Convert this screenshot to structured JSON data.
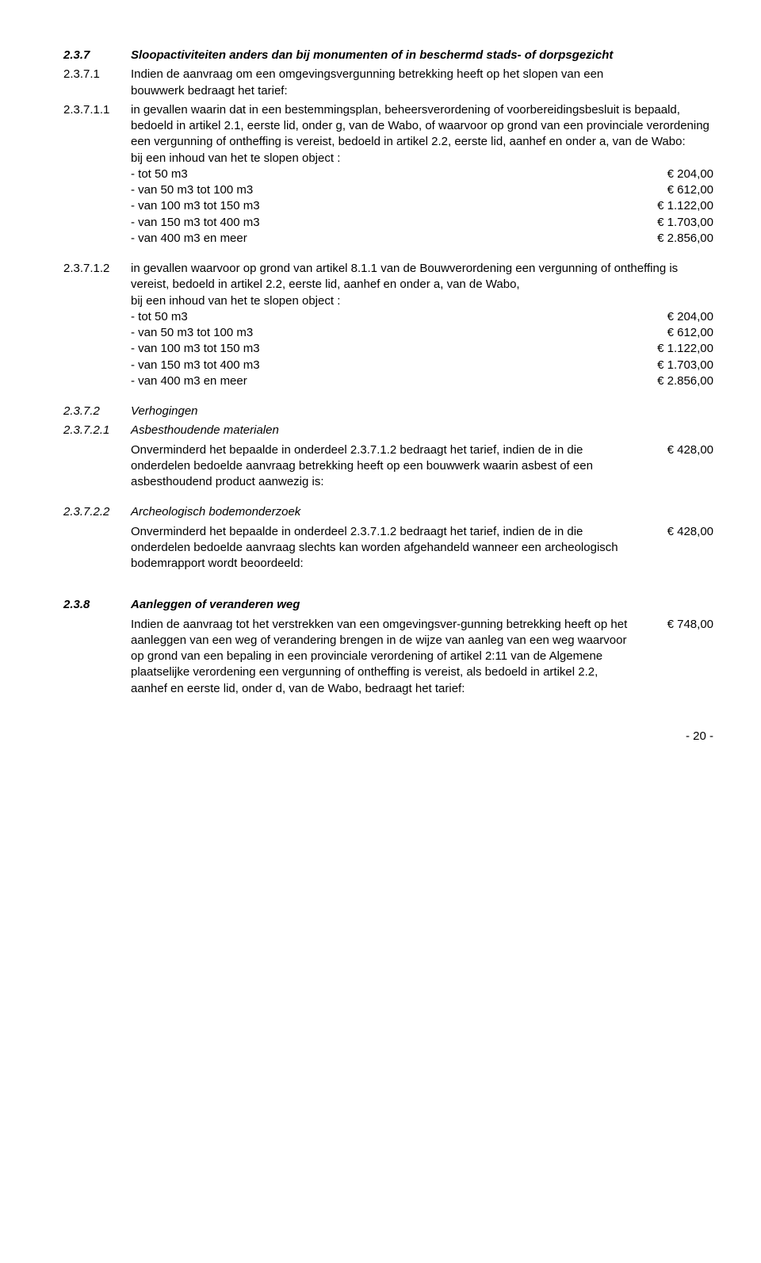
{
  "s237": {
    "num": "2.3.7",
    "title": "Sloopactiviteiten anders dan bij monumenten of in beschermd stads- of dorpsgezicht"
  },
  "s2371": {
    "num": "2.3.7.1",
    "text": "Indien de aanvraag om een omgevingsvergunning betrekking heeft op het slopen van een bouwwerk bedraagt het tarief:"
  },
  "s23711": {
    "num": "2.3.7.1.1",
    "text": "in gevallen waarin dat in een bestemmingsplan, beheersverordening of voorbereidingsbesluit is bepaald, bedoeld in artikel 2.1, eerste lid, onder g, van de Wabo, of waarvoor op grond van een provinciale verordening een vergunning of ontheffing is vereist, bedoeld in artikel 2.2, eerste lid, aanhef en onder a, van de Wabo:",
    "intro": "bij een inhoud van het te slopen object :",
    "rows": [
      {
        "label": "- tot 50 m3",
        "amount": "€     204,00"
      },
      {
        "label": "- van 50 m3 tot 100 m3",
        "amount": "€     612,00"
      },
      {
        "label": "- van 100 m3 tot 150 m3",
        "amount": "€  1.122,00"
      },
      {
        "label": "- van 150 m3 tot 400 m3",
        "amount": "€  1.703,00"
      },
      {
        "label": "- van 400 m3 en meer",
        "amount": "€  2.856,00"
      }
    ]
  },
  "s23712": {
    "num": "2.3.7.1.2",
    "text": "in gevallen waarvoor op grond van artikel 8.1.1 van de Bouwverordening een vergunning of ontheffing is vereist, bedoeld in artikel 2.2, eerste lid, aanhef en onder a, van de Wabo,",
    "intro": "bij een inhoud van het te slopen object :",
    "rows": [
      {
        "label": "- tot 50 m3",
        "amount": "€     204,00"
      },
      {
        "label": "- van 50 m3 tot 100 m3",
        "amount": "€     612,00"
      },
      {
        "label": "- van 100 m3 tot 150 m3",
        "amount": "€  1.122,00"
      },
      {
        "label": "- van 150 m3 tot 400 m3",
        "amount": "€  1.703,00"
      },
      {
        "label": "- van 400 m3 en meer",
        "amount": "€  2.856,00"
      }
    ]
  },
  "s2372": {
    "num": "2.3.7.2",
    "title": "Verhogingen"
  },
  "s23721": {
    "num": "2.3.7.2.1",
    "title": "Asbesthoudende materialen",
    "text": "Onverminderd het bepaalde in onderdeel 2.3.7.1.2 bedraagt het tarief, indien de in die onderdelen bedoelde aanvraag betrekking heeft op een bouwwerk waarin asbest of een asbesthoudend product aanwezig is:",
    "amount": "€     428,00"
  },
  "s23722": {
    "num": "2.3.7.2.2",
    "title": "Archeologisch bodemonderzoek",
    "text": "Onverminderd het bepaalde in onderdeel 2.3.7.1.2 bedraagt het tarief, indien de in die onderdelen bedoelde aanvraag slechts kan worden afgehandeld wanneer een archeologisch bodemrapport wordt beoordeeld:",
    "amount": "€     428,00"
  },
  "s238": {
    "num": "2.3.8",
    "title": "Aanleggen of veranderen weg",
    "text": "Indien de aanvraag tot het verstrekken van een omgevingsver-gunning betrekking heeft op het aanleggen van een weg of verandering brengen in de wijze van aanleg van een weg waarvoor op grond van een bepaling in een provinciale verordening of artikel 2:11 van de Algemene plaatselijke verordening een vergunning of ontheffing is vereist, als bedoeld in artikel 2.2, aanhef en eerste lid, onder d, van de Wabo, bedraagt het tarief:",
    "amount": "€     748,00"
  },
  "pagenum": "- 20 -"
}
